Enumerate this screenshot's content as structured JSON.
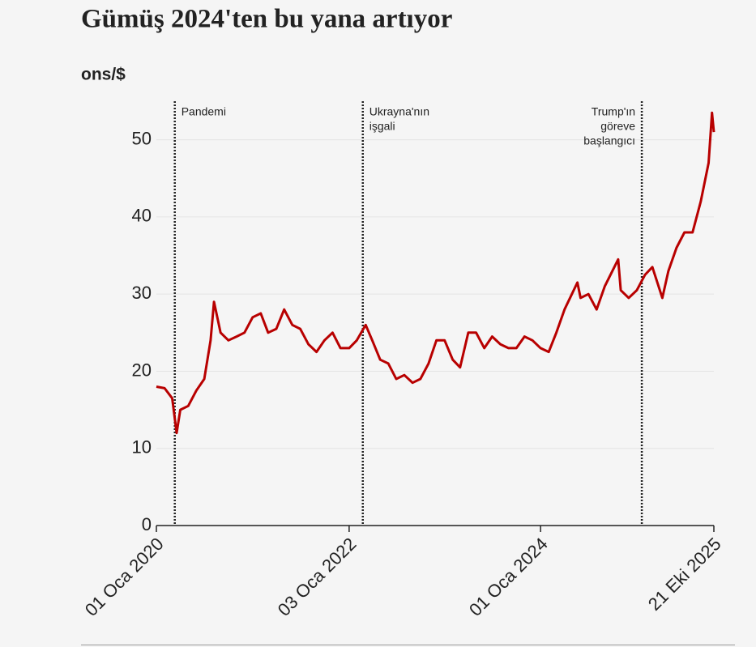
{
  "chart_data": {
    "type": "line",
    "title": "Gümüş 2024'ten bu yana artıyor",
    "y_label": "ons/$",
    "x": [
      "2020-01-01",
      "2020-02-01",
      "2020-03-01",
      "2020-03-18",
      "2020-04-01",
      "2020-05-01",
      "2020-06-01",
      "2020-07-01",
      "2020-07-25",
      "2020-08-07",
      "2020-09-01",
      "2020-10-01",
      "2020-11-01",
      "2020-12-01",
      "2021-01-01",
      "2021-02-01",
      "2021-03-01",
      "2021-04-01",
      "2021-05-01",
      "2021-06-01",
      "2021-07-01",
      "2021-08-01",
      "2021-09-01",
      "2021-10-01",
      "2021-11-01",
      "2021-12-01",
      "2022-01-03",
      "2022-02-01",
      "2022-03-07",
      "2022-04-01",
      "2022-05-01",
      "2022-06-01",
      "2022-07-01",
      "2022-08-01",
      "2022-09-01",
      "2022-10-01",
      "2022-11-01",
      "2022-12-01",
      "2023-01-01",
      "2023-02-01",
      "2023-03-01",
      "2023-04-01",
      "2023-05-01",
      "2023-06-01",
      "2023-07-01",
      "2023-08-01",
      "2023-09-01",
      "2023-10-01",
      "2023-11-01",
      "2023-12-01",
      "2024-01-01",
      "2024-02-01",
      "2024-03-01",
      "2024-04-01",
      "2024-05-20",
      "2024-06-01",
      "2024-07-01",
      "2024-08-01",
      "2024-09-01",
      "2024-10-22",
      "2024-11-01",
      "2024-12-01",
      "2025-01-01",
      "2025-02-01",
      "2025-03-01",
      "2025-04-08",
      "2025-05-01",
      "2025-06-01",
      "2025-07-01",
      "2025-08-01",
      "2025-09-01",
      "2025-10-01",
      "2025-10-14",
      "2025-10-21"
    ],
    "series": [
      {
        "name": "Gümüş",
        "color": "#b80000",
        "values": [
          18,
          17.8,
          16.5,
          12,
          15,
          15.5,
          17.5,
          19,
          24,
          29,
          25,
          24,
          24.5,
          25,
          27,
          27.5,
          25,
          25.5,
          28,
          26,
          25.5,
          23.5,
          22.5,
          24,
          25,
          23,
          23,
          24,
          26,
          24,
          21.5,
          21,
          19,
          19.5,
          18.5,
          19,
          21,
          24,
          24,
          21.5,
          20.5,
          25,
          25,
          23,
          24.5,
          23.5,
          23,
          23,
          24.5,
          24,
          23,
          22.5,
          25,
          28,
          31.5,
          29.5,
          30,
          28,
          31,
          34.5,
          30.5,
          29.5,
          30.5,
          32.5,
          33.5,
          29.5,
          33,
          36,
          38,
          38,
          42,
          47,
          53.5,
          51
        ]
      }
    ],
    "xlim": [
      "2020-01-01",
      "2025-10-21"
    ],
    "xticks": [
      {
        "value": "2020-01-01",
        "label": "01 Oca 2020"
      },
      {
        "value": "2022-01-03",
        "label": "03 Oca 2022"
      },
      {
        "value": "2024-01-01",
        "label": "01 Oca 2024"
      },
      {
        "value": "2025-10-21",
        "label": "21 Eki 2025"
      }
    ],
    "ylim": [
      0,
      55
    ],
    "yticks": [
      0,
      10,
      20,
      30,
      40,
      50
    ],
    "grid": true,
    "events": [
      {
        "x": "2020-03-11",
        "label": [
          "Pandemi"
        ]
      },
      {
        "x": "2022-02-24",
        "label": [
          "Ukrayna'nın",
          "işgali"
        ]
      },
      {
        "x": "2025-01-20",
        "label": [
          "Trump'ın",
          "göreve",
          "başlangıcı"
        ]
      }
    ]
  }
}
